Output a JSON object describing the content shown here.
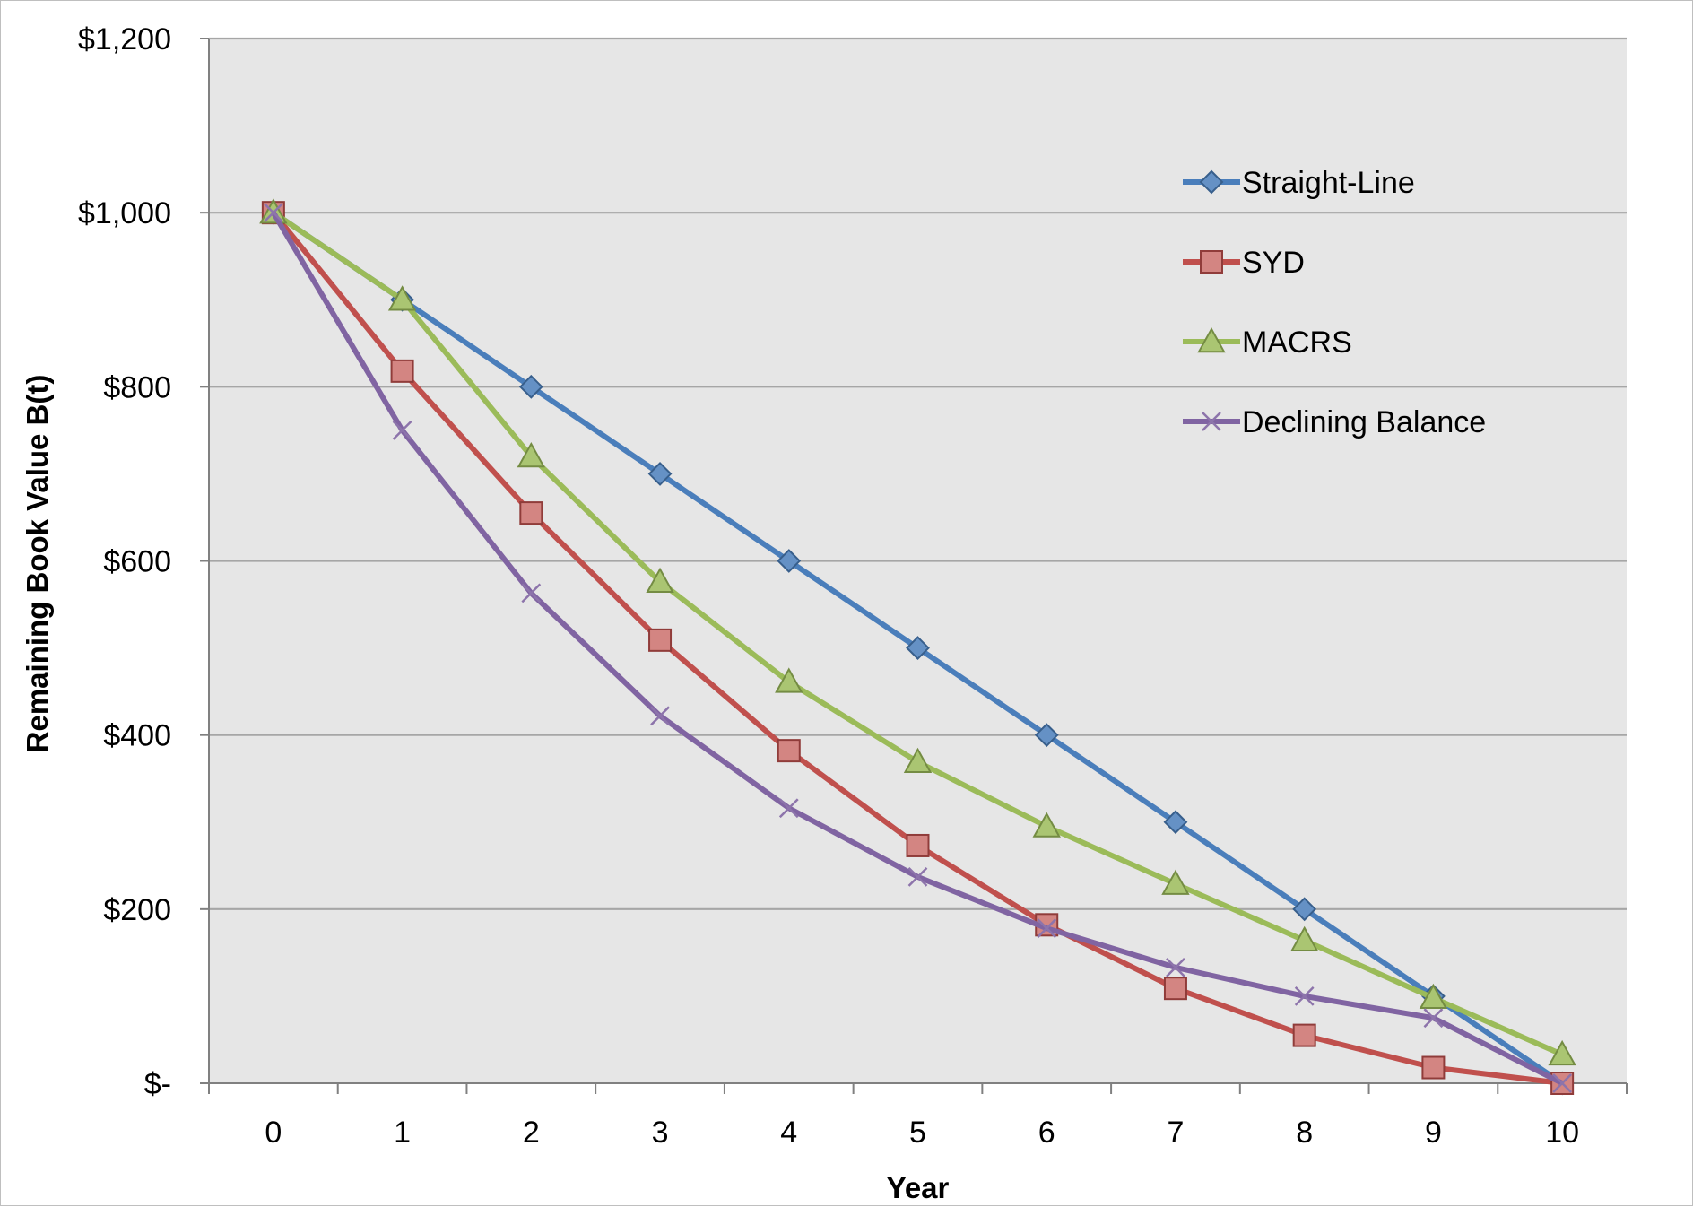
{
  "chart_data": {
    "type": "line",
    "title": "",
    "xlabel": "Year",
    "ylabel": "Remaining Book Value B(t)",
    "x": [
      0,
      1,
      2,
      3,
      4,
      5,
      6,
      7,
      8,
      9,
      10
    ],
    "x_tick_labels": [
      "0",
      "1",
      "2",
      "3",
      "4",
      "5",
      "6",
      "7",
      "8",
      "9",
      "10"
    ],
    "ylim": [
      0,
      1200
    ],
    "y_ticks": [
      0,
      200,
      400,
      600,
      800,
      1000,
      1200
    ],
    "y_tick_labels": [
      "$-",
      "$200",
      "$400",
      "$600",
      "$800",
      "$1,000",
      "$1,200"
    ],
    "grid": true,
    "plot_background": "#e6e6e6",
    "legend_position": "right",
    "series": [
      {
        "name": "Straight-Line",
        "color": "#4a7ebb",
        "marker": "diamond",
        "values": [
          1000,
          900,
          800,
          700,
          600,
          500,
          400,
          300,
          200,
          100,
          0
        ]
      },
      {
        "name": "SYD",
        "color": "#c0504d",
        "marker": "square",
        "values": [
          1000,
          818,
          655,
          509,
          382,
          273,
          182,
          109,
          55,
          18,
          0
        ]
      },
      {
        "name": "MACRS",
        "color": "#9bbb59",
        "marker": "triangle",
        "values": [
          1000,
          900,
          720,
          576,
          461,
          369,
          295,
          229,
          164,
          98,
          33
        ]
      },
      {
        "name": "Declining Balance",
        "color": "#8064a2",
        "marker": "x",
        "values": [
          1000,
          750,
          563,
          422,
          316,
          237,
          178,
          133,
          100,
          75,
          0
        ]
      }
    ]
  }
}
